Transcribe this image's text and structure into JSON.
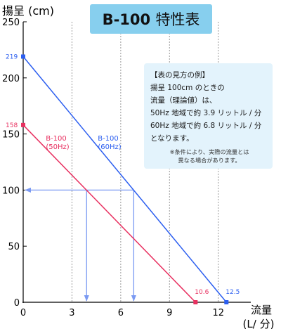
{
  "title": {
    "bold": "B-100",
    "suffix": "特性表"
  },
  "note": {
    "heading": "【表の見方の例】",
    "lines": [
      "揚呈 100cm のときの",
      "流量（理論値）は、",
      "50Hz 地域で約 3.9 リットル / 分",
      "60Hz 地域で約 6.8 リットル / 分",
      "となります。"
    ],
    "caveat_lines": [
      "※条件により、実際の流量とは",
      "異なる場合があります。"
    ]
  },
  "chart_data": {
    "type": "line",
    "title": "B-100 特性表",
    "ylabel": "揚呈 (cm)",
    "xlabel_lines": [
      "流量",
      "(L/ 分)"
    ],
    "xlim": [
      0,
      14
    ],
    "ylim": [
      0,
      250
    ],
    "x_ticks": [
      0,
      3,
      6,
      9,
      12
    ],
    "y_ticks": [
      0,
      50,
      100,
      150,
      200,
      250
    ],
    "grid": {
      "vertical_dashed": true,
      "horizontal": false
    },
    "series": [
      {
        "name": "B-100 (60Hz)",
        "label_lines": [
          "B-100",
          "(60Hz)"
        ],
        "color": "#2b5ef0",
        "points": [
          {
            "x": 0,
            "y": 219
          },
          {
            "x": 12.5,
            "y": 0
          }
        ],
        "endpoint_labels": [
          "219",
          "12.5"
        ]
      },
      {
        "name": "B-100 (50Hz)",
        "label_lines": [
          "B-100",
          "(50Hz)"
        ],
        "color": "#e83060",
        "points": [
          {
            "x": 0,
            "y": 158
          },
          {
            "x": 10.6,
            "y": 0
          }
        ],
        "endpoint_labels": [
          "158",
          "10.6"
        ]
      }
    ],
    "reading_guide": {
      "color": "#7b9af2",
      "head": 100,
      "flows": [
        {
          "label": "50Hz",
          "x": 3.9
        },
        {
          "label": "60Hz",
          "x": 6.8
        }
      ]
    }
  }
}
